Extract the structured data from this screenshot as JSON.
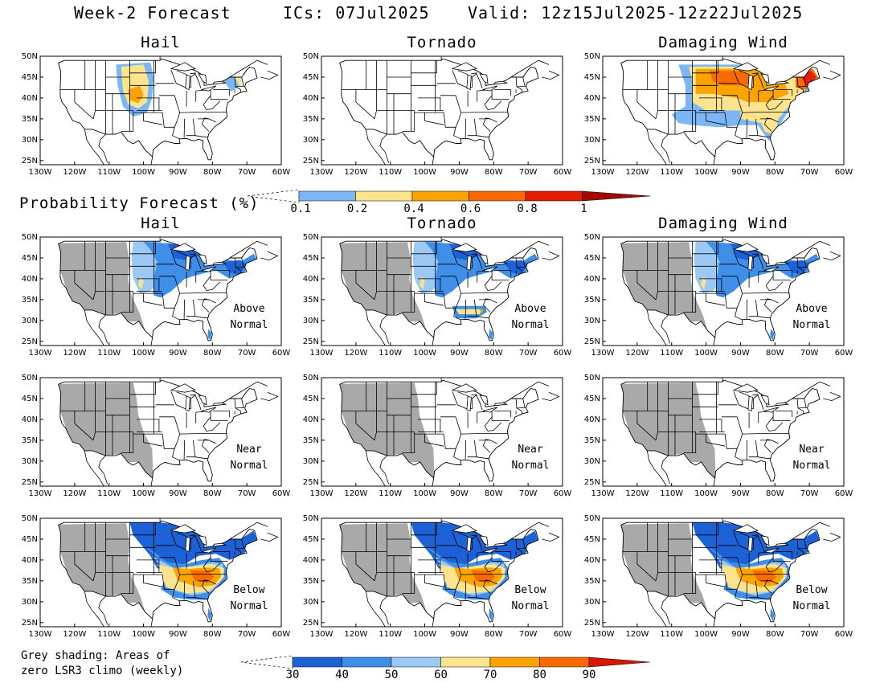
{
  "header": {
    "title": "Week-2 Forecast",
    "ics": "ICs: 07Jul2025",
    "valid": "Valid: 12z15Jul2025-12z22Jul2025"
  },
  "columns": [
    "Hail",
    "Tornado",
    "Damaging Wind"
  ],
  "rows": [
    {
      "id": "probability",
      "titles": [
        "Hail",
        "Tornado",
        "Damaging Wind"
      ],
      "label": []
    },
    {
      "id": "above",
      "titles": [
        "Hail",
        "Tornado",
        "Damaging Wind"
      ],
      "label": [
        "Above",
        "Normal"
      ]
    },
    {
      "id": "near",
      "titles": [],
      "label": [
        "Near",
        "Normal"
      ]
    },
    {
      "id": "below",
      "titles": [],
      "label": [
        "Below",
        "Normal"
      ]
    }
  ],
  "axes": {
    "lat_labels": [
      "50N",
      "45N",
      "40N",
      "35N",
      "30N",
      "25N"
    ],
    "lon_labels": [
      "130W",
      "120W",
      "110W",
      "100W",
      "90W",
      "80W",
      "70W",
      "60W"
    ],
    "lon_range": [
      -130,
      -60
    ],
    "lat_range": [
      24,
      50
    ]
  },
  "prob_legend": {
    "title": "Probability Forecast (%)",
    "ticks": [
      "0.1",
      "0.2",
      "0.4",
      "0.6",
      "0.8",
      "1"
    ],
    "colors": [
      "#7cb6f5",
      "#fbe48d",
      "#fba300",
      "#f66a00",
      "#e21d00",
      "#a00a00"
    ]
  },
  "anom_legend": {
    "ticks": [
      "30",
      "40",
      "50",
      "60",
      "70",
      "80",
      "90"
    ],
    "colors": [
      "#1c61d6",
      "#3f8ee8",
      "#9cc9f4",
      "#fbe48d",
      "#fba300",
      "#f66a00",
      "#d81600"
    ]
  },
  "note": "Grey shading: Areas of\nzero LSR3 climo (weekly)",
  "colors": {
    "grey": "#a9a9a9",
    "light_blue": "#7cb6f5",
    "yellow": "#fbe48d",
    "orange": "#fba300",
    "dark_orange": "#f66a00",
    "red": "#e21d00",
    "dark_blue": "#1c61d6",
    "mid_blue": "#3f8ee8",
    "pale_blue": "#9cc9f4"
  }
}
